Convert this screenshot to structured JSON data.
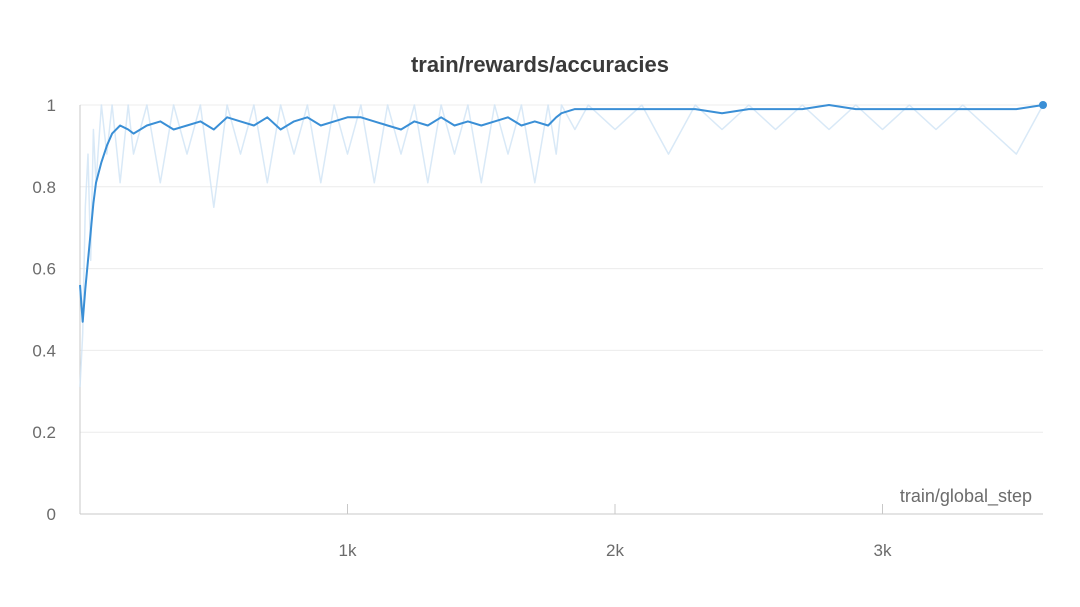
{
  "chart_data": {
    "type": "line",
    "title": "train/rewards/accuracies",
    "xlabel": "train/global_step",
    "ylabel": "",
    "xlim": [
      0,
      3600
    ],
    "ylim": [
      0,
      1
    ],
    "x_ticks": [
      {
        "value": 1000,
        "label": "1k"
      },
      {
        "value": 2000,
        "label": "2k"
      },
      {
        "value": 3000,
        "label": "3k"
      }
    ],
    "y_ticks": [
      {
        "value": 0,
        "label": "0"
      },
      {
        "value": 0.2,
        "label": "0.2"
      },
      {
        "value": 0.4,
        "label": "0.4"
      },
      {
        "value": 0.6,
        "label": "0.6"
      },
      {
        "value": 0.8,
        "label": "0.8"
      },
      {
        "value": 1,
        "label": "1"
      }
    ],
    "grid": true,
    "colors": {
      "smoothed": "#3a8fd6",
      "raw": "#cfe3f5",
      "grid": "#ececec",
      "axis": "#c8c8c8"
    },
    "series": [
      {
        "role": "smoothed",
        "x": [
          0,
          10,
          20,
          30,
          40,
          50,
          60,
          80,
          100,
          120,
          150,
          180,
          200,
          250,
          300,
          350,
          400,
          450,
          500,
          550,
          600,
          650,
          700,
          750,
          800,
          850,
          900,
          950,
          1000,
          1050,
          1100,
          1150,
          1200,
          1250,
          1300,
          1350,
          1400,
          1450,
          1500,
          1550,
          1600,
          1650,
          1700,
          1750,
          1780,
          1800,
          1850,
          1900,
          2000,
          2100,
          2200,
          2300,
          2400,
          2500,
          2600,
          2700,
          2800,
          2900,
          3000,
          3100,
          3200,
          3300,
          3400,
          3500,
          3600
        ],
        "y": [
          0.56,
          0.47,
          0.55,
          0.62,
          0.69,
          0.76,
          0.81,
          0.86,
          0.9,
          0.93,
          0.95,
          0.94,
          0.93,
          0.95,
          0.96,
          0.94,
          0.95,
          0.96,
          0.94,
          0.97,
          0.96,
          0.95,
          0.97,
          0.94,
          0.96,
          0.97,
          0.95,
          0.96,
          0.97,
          0.97,
          0.96,
          0.95,
          0.94,
          0.96,
          0.95,
          0.97,
          0.95,
          0.96,
          0.95,
          0.96,
          0.97,
          0.95,
          0.96,
          0.95,
          0.97,
          0.98,
          0.99,
          0.99,
          0.99,
          0.99,
          0.99,
          0.99,
          0.98,
          0.99,
          0.99,
          0.99,
          1.0,
          0.99,
          0.99,
          0.99,
          0.99,
          0.99,
          0.99,
          0.99,
          1.0
        ]
      },
      {
        "role": "raw",
        "x": [
          0,
          10,
          20,
          30,
          40,
          50,
          60,
          80,
          100,
          120,
          150,
          180,
          200,
          250,
          300,
          350,
          400,
          450,
          500,
          550,
          600,
          650,
          700,
          750,
          800,
          850,
          900,
          950,
          1000,
          1050,
          1100,
          1150,
          1200,
          1250,
          1300,
          1350,
          1400,
          1450,
          1500,
          1550,
          1600,
          1650,
          1700,
          1750,
          1780,
          1800,
          1850,
          1900,
          2000,
          2100,
          2200,
          2300,
          2400,
          2500,
          2600,
          2700,
          2800,
          2900,
          3000,
          3100,
          3200,
          3300,
          3400,
          3500,
          3600
        ],
        "y": [
          0.31,
          0.44,
          0.75,
          0.88,
          0.62,
          0.94,
          0.81,
          1.0,
          0.88,
          1.0,
          0.81,
          1.0,
          0.88,
          1.0,
          0.81,
          1.0,
          0.88,
          1.0,
          0.75,
          1.0,
          0.88,
          1.0,
          0.81,
          1.0,
          0.88,
          1.0,
          0.81,
          1.0,
          0.88,
          1.0,
          0.81,
          1.0,
          0.88,
          1.0,
          0.81,
          1.0,
          0.88,
          1.0,
          0.81,
          1.0,
          0.88,
          1.0,
          0.81,
          1.0,
          0.88,
          1.0,
          0.94,
          1.0,
          0.94,
          1.0,
          0.88,
          1.0,
          0.94,
          1.0,
          0.94,
          1.0,
          0.94,
          1.0,
          0.94,
          1.0,
          0.94,
          1.0,
          0.94,
          0.88,
          1.0
        ]
      }
    ]
  }
}
